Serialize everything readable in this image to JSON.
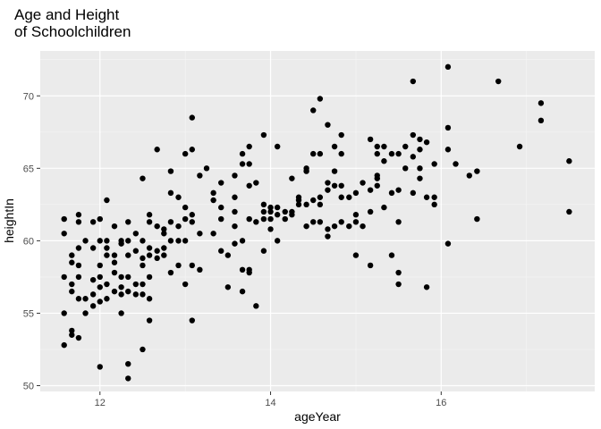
{
  "chart_data": {
    "type": "scatter",
    "title_lines": [
      "Age and Height",
      "of Schoolchildren"
    ],
    "xlabel": "ageYear",
    "ylabel": "heightIn",
    "xlim": [
      11.3,
      17.8
    ],
    "ylim": [
      49.6,
      73.1
    ],
    "x_ticks": [
      12,
      14,
      16
    ],
    "y_ticks": [
      50,
      55,
      60,
      65,
      70
    ],
    "grid": true,
    "colors": {
      "panel": "#ebebeb",
      "grid_major": "#ffffff",
      "grid_minor": "#f5f5f5",
      "point": "#000000",
      "tick_text": "#4d4d4d",
      "axis_title": "#000000"
    },
    "points": [
      [
        11.58,
        61.5
      ],
      [
        11.58,
        60.5
      ],
      [
        11.58,
        57.5
      ],
      [
        11.58,
        55.0
      ],
      [
        11.58,
        52.8
      ],
      [
        11.67,
        59.0
      ],
      [
        11.67,
        58.5
      ],
      [
        11.67,
        57.0
      ],
      [
        11.67,
        56.5
      ],
      [
        11.67,
        53.8
      ],
      [
        11.67,
        53.5
      ],
      [
        11.75,
        61.8
      ],
      [
        11.75,
        61.3
      ],
      [
        11.75,
        59.5
      ],
      [
        11.75,
        58.3
      ],
      [
        11.75,
        57.5
      ],
      [
        11.75,
        56.0
      ],
      [
        11.75,
        53.3
      ],
      [
        11.83,
        60.0
      ],
      [
        11.83,
        56.0
      ],
      [
        11.83,
        55.0
      ],
      [
        11.92,
        61.3
      ],
      [
        11.92,
        59.5
      ],
      [
        11.92,
        57.3
      ],
      [
        11.92,
        56.3
      ],
      [
        11.92,
        55.5
      ],
      [
        12.0,
        61.5
      ],
      [
        12.0,
        60.0
      ],
      [
        12.0,
        58.3
      ],
      [
        12.0,
        57.5
      ],
      [
        12.0,
        56.8
      ],
      [
        12.0,
        55.8
      ],
      [
        12.0,
        51.3
      ],
      [
        12.08,
        62.8
      ],
      [
        12.08,
        60.0
      ],
      [
        12.08,
        59.5
      ],
      [
        12.08,
        59.0
      ],
      [
        12.08,
        57.0
      ],
      [
        12.08,
        56.0
      ],
      [
        12.17,
        61.0
      ],
      [
        12.17,
        59.0
      ],
      [
        12.17,
        58.5
      ],
      [
        12.17,
        57.8
      ],
      [
        12.17,
        56.5
      ],
      [
        12.25,
        60.0
      ],
      [
        12.25,
        59.8
      ],
      [
        12.25,
        57.5
      ],
      [
        12.25,
        56.8
      ],
      [
        12.25,
        56.3
      ],
      [
        12.25,
        55.0
      ],
      [
        12.33,
        61.3
      ],
      [
        12.33,
        60.0
      ],
      [
        12.33,
        59.0
      ],
      [
        12.33,
        57.5
      ],
      [
        12.33,
        56.5
      ],
      [
        12.33,
        51.5
      ],
      [
        12.33,
        50.5
      ],
      [
        12.42,
        60.5
      ],
      [
        12.42,
        59.3
      ],
      [
        12.42,
        57.0
      ],
      [
        12.42,
        56.3
      ],
      [
        12.5,
        64.3
      ],
      [
        12.5,
        60.0
      ],
      [
        12.5,
        58.8
      ],
      [
        12.5,
        58.3
      ],
      [
        12.5,
        57.0
      ],
      [
        12.5,
        56.3
      ],
      [
        12.5,
        52.5
      ],
      [
        12.58,
        61.8
      ],
      [
        12.58,
        61.3
      ],
      [
        12.58,
        59.5
      ],
      [
        12.58,
        59.0
      ],
      [
        12.58,
        57.5
      ],
      [
        12.58,
        56.0
      ],
      [
        12.58,
        54.5
      ],
      [
        12.67,
        66.3
      ],
      [
        12.67,
        61.0
      ],
      [
        12.67,
        59.3
      ],
      [
        12.67,
        58.8
      ],
      [
        12.75,
        60.8
      ],
      [
        12.75,
        60.5
      ],
      [
        12.75,
        59.5
      ],
      [
        12.75,
        59.0
      ],
      [
        12.83,
        64.8
      ],
      [
        12.83,
        63.3
      ],
      [
        12.83,
        61.3
      ],
      [
        12.83,
        60.0
      ],
      [
        12.83,
        57.8
      ],
      [
        12.92,
        63.0
      ],
      [
        12.92,
        61.0
      ],
      [
        12.92,
        60.0
      ],
      [
        12.92,
        58.3
      ],
      [
        13.0,
        66.0
      ],
      [
        13.0,
        62.3
      ],
      [
        13.0,
        61.5
      ],
      [
        13.0,
        60.0
      ],
      [
        13.0,
        57.0
      ],
      [
        13.08,
        68.5
      ],
      [
        13.08,
        66.3
      ],
      [
        13.08,
        61.8
      ],
      [
        13.08,
        61.3
      ],
      [
        13.08,
        58.3
      ],
      [
        13.08,
        54.5
      ],
      [
        13.17,
        64.5
      ],
      [
        13.17,
        60.5
      ],
      [
        13.17,
        58.0
      ],
      [
        13.25,
        65.0
      ],
      [
        13.33,
        63.3
      ],
      [
        13.33,
        62.8
      ],
      [
        13.33,
        60.5
      ],
      [
        13.42,
        64.0
      ],
      [
        13.42,
        62.3
      ],
      [
        13.42,
        61.5
      ],
      [
        13.42,
        59.3
      ],
      [
        13.5,
        59.0
      ],
      [
        13.5,
        56.8
      ],
      [
        13.58,
        64.5
      ],
      [
        13.58,
        63.0
      ],
      [
        13.58,
        62.0
      ],
      [
        13.58,
        61.0
      ],
      [
        13.58,
        59.8
      ],
      [
        13.67,
        66.0
      ],
      [
        13.67,
        65.3
      ],
      [
        13.67,
        60.0
      ],
      [
        13.67,
        58.0
      ],
      [
        13.67,
        56.5
      ],
      [
        13.75,
        66.5
      ],
      [
        13.75,
        65.3
      ],
      [
        13.75,
        63.8
      ],
      [
        13.75,
        61.5
      ],
      [
        13.75,
        58.0
      ],
      [
        13.75,
        57.8
      ],
      [
        13.83,
        64.0
      ],
      [
        13.83,
        61.3
      ],
      [
        13.83,
        55.5
      ],
      [
        13.92,
        67.3
      ],
      [
        13.92,
        62.5
      ],
      [
        13.92,
        62.0
      ],
      [
        13.92,
        61.5
      ],
      [
        13.92,
        59.3
      ],
      [
        14.0,
        62.3
      ],
      [
        14.0,
        62.0
      ],
      [
        14.0,
        61.5
      ],
      [
        14.0,
        60.8
      ],
      [
        14.08,
        66.5
      ],
      [
        14.08,
        62.3
      ],
      [
        14.08,
        61.8
      ],
      [
        14.08,
        60.0
      ],
      [
        14.17,
        62.0
      ],
      [
        14.17,
        61.5
      ],
      [
        14.25,
        64.3
      ],
      [
        14.25,
        62.0
      ],
      [
        14.25,
        61.8
      ],
      [
        14.33,
        63.0
      ],
      [
        14.33,
        62.8
      ],
      [
        14.33,
        62.5
      ],
      [
        14.42,
        65.0
      ],
      [
        14.42,
        64.8
      ],
      [
        14.42,
        62.5
      ],
      [
        14.42,
        61.0
      ],
      [
        14.5,
        69.0
      ],
      [
        14.5,
        66.0
      ],
      [
        14.5,
        62.8
      ],
      [
        14.5,
        61.3
      ],
      [
        14.58,
        69.8
      ],
      [
        14.58,
        66.0
      ],
      [
        14.58,
        63.0
      ],
      [
        14.58,
        62.5
      ],
      [
        14.58,
        61.3
      ],
      [
        14.67,
        68.0
      ],
      [
        14.67,
        64.0
      ],
      [
        14.67,
        63.5
      ],
      [
        14.67,
        60.8
      ],
      [
        14.67,
        60.3
      ],
      [
        14.75,
        66.5
      ],
      [
        14.75,
        64.8
      ],
      [
        14.75,
        63.8
      ],
      [
        14.75,
        61.0
      ],
      [
        14.83,
        67.3
      ],
      [
        14.83,
        66.0
      ],
      [
        14.83,
        63.8
      ],
      [
        14.83,
        63.0
      ],
      [
        14.83,
        61.3
      ],
      [
        14.92,
        63.0
      ],
      [
        14.92,
        61.0
      ],
      [
        15.0,
        63.3
      ],
      [
        15.0,
        61.8
      ],
      [
        15.0,
        61.3
      ],
      [
        15.0,
        59.0
      ],
      [
        15.08,
        64.0
      ],
      [
        15.08,
        61.0
      ],
      [
        15.17,
        67.0
      ],
      [
        15.17,
        63.5
      ],
      [
        15.17,
        62.0
      ],
      [
        15.17,
        58.3
      ],
      [
        15.25,
        66.5
      ],
      [
        15.25,
        66.0
      ],
      [
        15.25,
        64.5
      ],
      [
        15.25,
        64.3
      ],
      [
        15.25,
        63.8
      ],
      [
        15.33,
        66.5
      ],
      [
        15.33,
        65.5
      ],
      [
        15.33,
        62.3
      ],
      [
        15.42,
        66.0
      ],
      [
        15.42,
        63.3
      ],
      [
        15.42,
        59.0
      ],
      [
        15.5,
        66.0
      ],
      [
        15.5,
        63.5
      ],
      [
        15.5,
        61.3
      ],
      [
        15.5,
        57.8
      ],
      [
        15.5,
        57.0
      ],
      [
        15.58,
        66.5
      ],
      [
        15.58,
        65.0
      ],
      [
        15.67,
        71.0
      ],
      [
        15.67,
        67.3
      ],
      [
        15.67,
        65.8
      ],
      [
        15.67,
        63.3
      ],
      [
        15.75,
        67.0
      ],
      [
        15.75,
        66.3
      ],
      [
        15.75,
        65.0
      ],
      [
        15.75,
        64.3
      ],
      [
        15.83,
        66.8
      ],
      [
        15.83,
        63.0
      ],
      [
        15.83,
        56.8
      ],
      [
        15.92,
        65.3
      ],
      [
        15.92,
        63.0
      ],
      [
        15.92,
        62.5
      ],
      [
        16.08,
        72.0
      ],
      [
        16.08,
        67.8
      ],
      [
        16.08,
        66.3
      ],
      [
        16.08,
        59.8
      ],
      [
        16.17,
        65.3
      ],
      [
        16.33,
        64.5
      ],
      [
        16.42,
        64.8
      ],
      [
        16.42,
        61.5
      ],
      [
        16.67,
        71.0
      ],
      [
        16.92,
        66.5
      ],
      [
        17.17,
        69.5
      ],
      [
        17.17,
        68.3
      ],
      [
        17.5,
        65.5
      ],
      [
        17.5,
        62.0
      ]
    ]
  }
}
